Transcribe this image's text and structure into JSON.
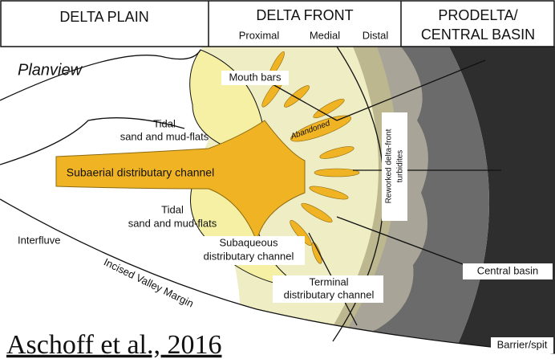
{
  "header": {
    "delta_plain": "DELTA PLAIN",
    "delta_front": "DELTA FRONT",
    "prodelta": [
      "PRODELTA/",
      "CENTRAL BASIN"
    ],
    "front_zones": [
      "Proximal",
      "Medial",
      "Distal"
    ]
  },
  "labels": {
    "planview": "Planview",
    "mouth_bars": "Mouth bars",
    "tidal_upper": [
      "Tidal",
      "sand and mud-flats"
    ],
    "abandoned": "Abandoned",
    "subaerial_channel": "Subaerial distributary channel",
    "reworked": [
      "Reworked delta-front",
      "turbidites"
    ],
    "tidal_lower": [
      "Tidal",
      "sand and mud-flats"
    ],
    "interfluve": "Interfluve",
    "subaqueous_channel": [
      "Subaqueous",
      "distributary channel"
    ],
    "incised_valley_margin": "Incised Valley Margin",
    "terminal_channel": [
      "Terminal",
      "distributary channel"
    ],
    "central_basin": "Central basin",
    "barrier_spit": "Barrier/spit"
  },
  "citation": "Aschoff et al., 2016"
}
